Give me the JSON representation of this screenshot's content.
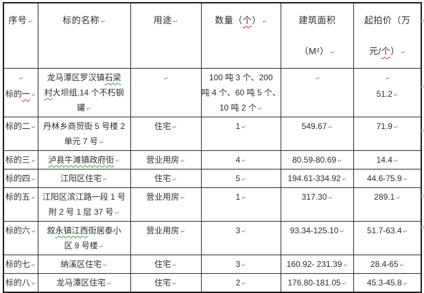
{
  "document": {
    "type": "word-table",
    "pilcrow_glyph": "↵",
    "background": "#ffffff"
  },
  "colors": {
    "text": "#2d2d2d",
    "border": "#2b2b2b",
    "spellcheck_red": "#e03131",
    "grammar_green": "#2f9e44",
    "formatting_mark": "#8f8f8f"
  },
  "table": {
    "header": {
      "cells": [
        {
          "lines": [
            {
              "segs": [
                {
                  "t": "序号"
                }
              ],
              "p": true
            }
          ]
        },
        {
          "lines": [
            {
              "segs": [
                {
                  "t": "标的名称"
                }
              ],
              "p": true
            }
          ]
        },
        {
          "lines": [
            {
              "segs": [
                {
                  "t": "用途"
                }
              ],
              "p": true
            }
          ]
        },
        {
          "lines": [
            {
              "segs": [
                {
                  "t": "数量（"
                },
                {
                  "t": "个",
                  "wavy": "red"
                },
                {
                  "t": "）"
                }
              ],
              "p": true
            }
          ]
        },
        {
          "lines": [
            {
              "segs": [
                {
                  "t": "建筑面积"
                }
              ],
              "p": false
            },
            {
              "segs": [
                {
                  "t": "（M²）"
                }
              ],
              "p": true
            }
          ]
        },
        {
          "lines": [
            {
              "segs": [
                {
                  "t": "起拍价（万"
                }
              ],
              "p": false
            },
            {
              "segs": [
                {
                  "t": "元/"
                },
                {
                  "t": "个",
                  "wavy": "red"
                },
                {
                  "t": "）"
                }
              ],
              "p": true
            }
          ]
        }
      ]
    },
    "rows": [
      {
        "cells": [
          {
            "lines": [
              {
                "segs": [],
                "p": true
              },
              {
                "segs": [
                  {
                    "t": "标的"
                  },
                  {
                    "t": "一",
                    "wavy": "red"
                  }
                ],
                "p": true
              }
            ]
          },
          {
            "lines": [
              {
                "segs": [
                  {
                    "t": "龙马潭区罗汉镇"
                  },
                  {
                    "t": "石梁",
                    "wavy": "green"
                  }
                ],
                "p": false
              },
              {
                "segs": [
                  {
                    "t": "村",
                    "wavy": "green"
                  },
                  {
                    "t": "大坝组,14 个不朽钢"
                  }
                ],
                "p": false
              },
              {
                "segs": [
                  {
                    "t": "罐"
                  }
                ],
                "p": true
              }
            ]
          },
          {
            "lines": [
              {
                "segs": [],
                "p": true
              }
            ]
          },
          {
            "lines": [
              {
                "segs": [
                  {
                    "t": "100 吨 3 个、200"
                  }
                ],
                "p": false
              },
              {
                "segs": [
                  {
                    "t": "吨 4 个、60 吨 5 个、"
                  }
                ],
                "p": false
              },
              {
                "segs": [
                  {
                    "t": "10 吨 2 个"
                  }
                ],
                "p": true
              }
            ]
          },
          {
            "lines": [
              {
                "segs": [],
                "p": true
              }
            ]
          },
          {
            "lines": [
              {
                "segs": [],
                "p": true
              },
              {
                "segs": [
                  {
                    "t": "51.2"
                  }
                ],
                "p": true
              }
            ]
          }
        ]
      },
      {
        "cells": [
          {
            "lines": [
              {
                "segs": [
                  {
                    "t": "标的二"
                  }
                ],
                "p": true
              }
            ]
          },
          {
            "lines": [
              {
                "segs": [
                  {
                    "t": "丹林乡商贸街 5 号楼 2"
                  }
                ],
                "p": false
              },
              {
                "segs": [
                  {
                    "t": "单元 7 号"
                  }
                ],
                "p": true
              }
            ]
          },
          {
            "lines": [
              {
                "segs": [
                  {
                    "t": "住宅"
                  }
                ],
                "p": true
              }
            ]
          },
          {
            "lines": [
              {
                "segs": [
                  {
                    "t": "1"
                  }
                ],
                "p": true
              }
            ]
          },
          {
            "lines": [
              {
                "segs": [
                  {
                    "t": "549.67"
                  }
                ],
                "p": true
              }
            ]
          },
          {
            "lines": [
              {
                "segs": [
                  {
                    "t": "71.9"
                  }
                ],
                "p": true
              }
            ]
          }
        ]
      },
      {
        "cells": [
          {
            "lines": [
              {
                "segs": [
                  {
                    "t": "标的三"
                  }
                ],
                "p": true
              }
            ]
          },
          {
            "lines": [
              {
                "segs": [
                  {
                    "t": "泸县牛滩镇政府街",
                    "wavy": "green"
                  }
                ],
                "p": true
              }
            ]
          },
          {
            "lines": [
              {
                "segs": [
                  {
                    "t": "营业用房"
                  }
                ],
                "p": true
              }
            ]
          },
          {
            "lines": [
              {
                "segs": [
                  {
                    "t": "4"
                  }
                ],
                "p": true
              }
            ]
          },
          {
            "lines": [
              {
                "segs": [
                  {
                    "t": "80.59-80.69"
                  }
                ],
                "p": true
              }
            ]
          },
          {
            "lines": [
              {
                "segs": [
                  {
                    "t": "14.4"
                  }
                ],
                "p": true
              }
            ]
          }
        ]
      },
      {
        "cells": [
          {
            "lines": [
              {
                "segs": [
                  {
                    "t": "标的四"
                  }
                ],
                "p": true
              }
            ]
          },
          {
            "lines": [
              {
                "segs": [
                  {
                    "t": "江阳区住宅"
                  }
                ],
                "p": true
              }
            ]
          },
          {
            "lines": [
              {
                "segs": [
                  {
                    "t": "住宅"
                  }
                ],
                "p": true
              }
            ]
          },
          {
            "lines": [
              {
                "segs": [
                  {
                    "t": "5"
                  }
                ],
                "p": true
              }
            ]
          },
          {
            "lines": [
              {
                "segs": [
                  {
                    "t": "194.61-334.92"
                  }
                ],
                "p": true
              }
            ]
          },
          {
            "lines": [
              {
                "segs": [
                  {
                    "t": "44.6-75.9"
                  }
                ],
                "p": true
              }
            ]
          }
        ]
      },
      {
        "cells": [
          {
            "lines": [
              {
                "segs": [
                  {
                    "t": "标的五"
                  }
                ],
                "p": true
              }
            ]
          },
          {
            "lines": [
              {
                "segs": [
                  {
                    "t": "江阳区滨江路一段 1 号"
                  }
                ],
                "p": false
              },
              {
                "segs": [
                  {
                    "t": "附 2 号 1 层 37 号"
                  }
                ],
                "p": true
              }
            ]
          },
          {
            "lines": [
              {
                "segs": [
                  {
                    "t": "营业用房"
                  }
                ],
                "p": true
              }
            ]
          },
          {
            "lines": [
              {
                "segs": [
                  {
                    "t": "1"
                  }
                ],
                "p": true
              }
            ]
          },
          {
            "lines": [
              {
                "segs": [
                  {
                    "t": "317.30"
                  }
                ],
                "p": true
              }
            ]
          },
          {
            "lines": [
              {
                "segs": [
                  {
                    "t": "289.1"
                  }
                ],
                "p": true
              }
            ]
          }
        ]
      },
      {
        "cells": [
          {
            "lines": [
              {
                "segs": [
                  {
                    "t": "标的六"
                  }
                ],
                "p": true
              }
            ]
          },
          {
            "lines": [
              {
                "segs": [
                  {
                    "t": "叙"
                  },
                  {
                    "t": "永镇江西",
                    "wavy": "green"
                  },
                  {
                    "t": "街居泰小"
                  }
                ],
                "p": false
              },
              {
                "segs": [
                  {
                    "t": "区 9 号楼"
                  }
                ],
                "p": true
              }
            ]
          },
          {
            "lines": [
              {
                "segs": [
                  {
                    "t": "营业用房"
                  }
                ],
                "p": true
              }
            ]
          },
          {
            "lines": [
              {
                "segs": [
                  {
                    "t": "3"
                  }
                ],
                "p": true
              }
            ]
          },
          {
            "lines": [
              {
                "segs": [
                  {
                    "t": "93.34-125.10"
                  }
                ],
                "p": true
              }
            ]
          },
          {
            "lines": [
              {
                "segs": [
                  {
                    "t": "51.7-63.4"
                  }
                ],
                "p": true
              }
            ]
          }
        ]
      },
      {
        "cells": [
          {
            "lines": [
              {
                "segs": [
                  {
                    "t": "标的七"
                  }
                ],
                "p": true
              }
            ]
          },
          {
            "lines": [
              {
                "segs": [
                  {
                    "t": "纳溪区住宅"
                  }
                ],
                "p": true
              }
            ]
          },
          {
            "lines": [
              {
                "segs": [
                  {
                    "t": "住宅"
                  }
                ],
                "p": true
              }
            ]
          },
          {
            "lines": [
              {
                "segs": [
                  {
                    "t": "3"
                  }
                ],
                "p": true
              }
            ]
          },
          {
            "lines": [
              {
                "segs": [
                  {
                    "t": "160.92- 231.39"
                  }
                ],
                "p": true
              }
            ]
          },
          {
            "lines": [
              {
                "segs": [
                  {
                    "t": "28.4-65"
                  }
                ],
                "p": true
              }
            ]
          }
        ]
      },
      {
        "cells": [
          {
            "lines": [
              {
                "segs": [
                  {
                    "t": "标的八"
                  }
                ],
                "p": true
              }
            ]
          },
          {
            "lines": [
              {
                "segs": [
                  {
                    "t": "龙马潭区住宅"
                  }
                ],
                "p": true
              }
            ]
          },
          {
            "lines": [
              {
                "segs": [
                  {
                    "t": "住宅"
                  }
                ],
                "p": true
              }
            ]
          },
          {
            "lines": [
              {
                "segs": [
                  {
                    "t": "2"
                  }
                ],
                "p": true
              }
            ]
          },
          {
            "lines": [
              {
                "segs": [
                  {
                    "t": "176.80-181.05"
                  }
                ],
                "p": true
              }
            ]
          },
          {
            "lines": [
              {
                "segs": [
                  {
                    "t": "45.3-45.8"
                  }
                ],
                "p": true
              }
            ]
          }
        ]
      }
    ]
  }
}
